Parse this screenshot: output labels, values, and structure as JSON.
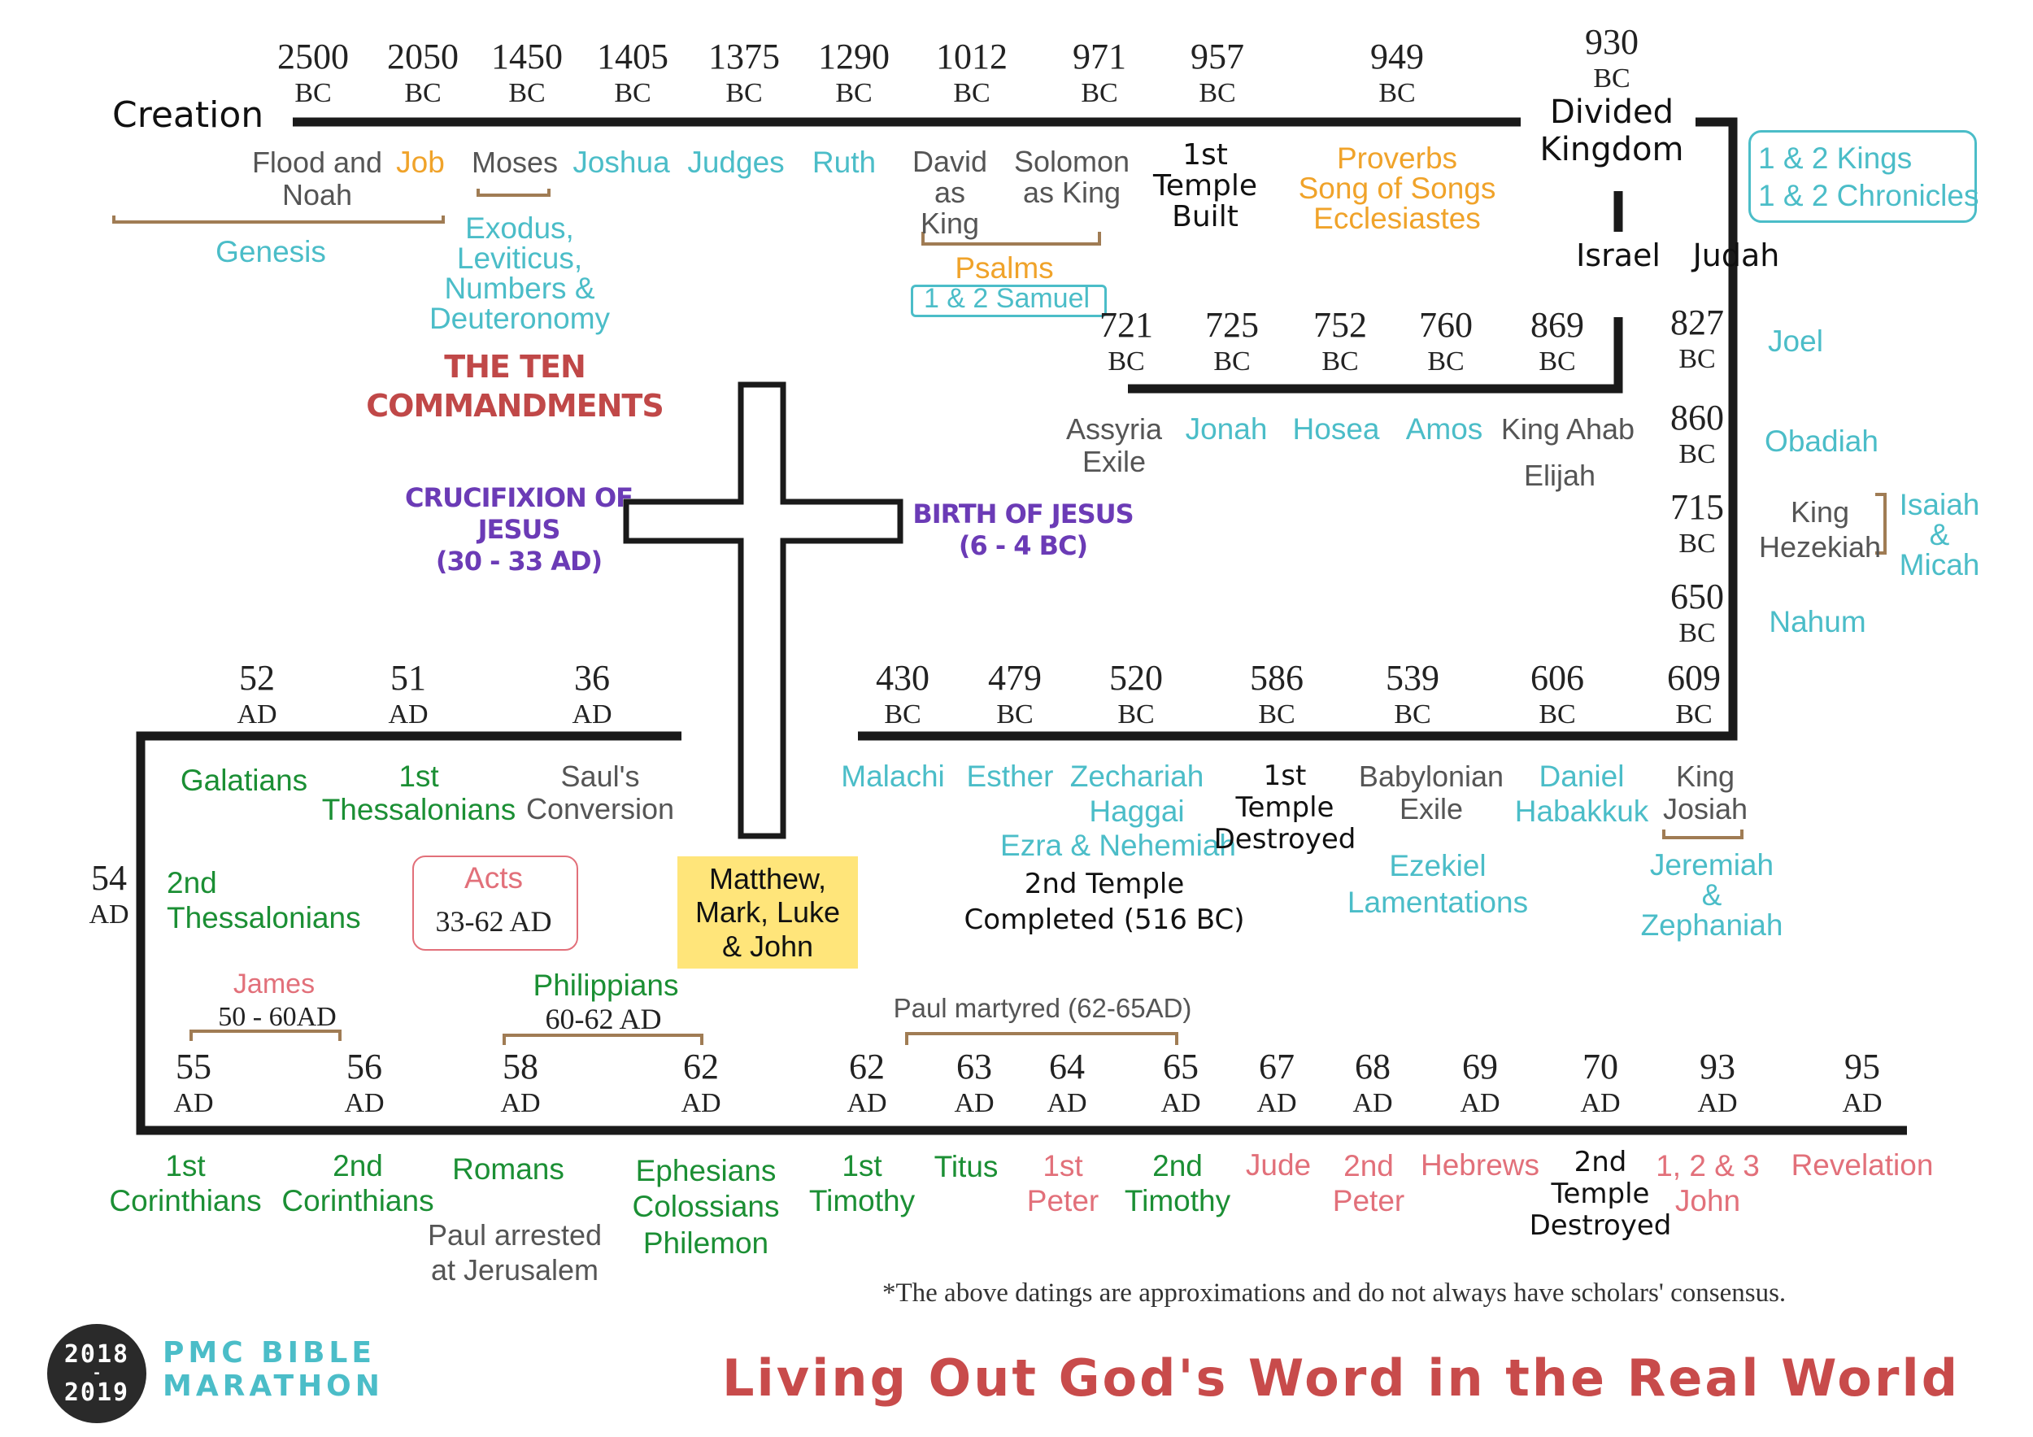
{
  "colors": {
    "timeline": "#1a1a1a",
    "teal": "#4bbdc8",
    "orange": "#f0a32a",
    "green": "#1b8f34",
    "pink": "#e2707a",
    "purple": "#6b3bb6",
    "red": "#c04848",
    "gray": "#555555",
    "bracket": "#a07c54",
    "gospels_bg": "#ffe57a"
  },
  "row1": {
    "start": "Creation",
    "dates": [
      {
        "year": "2500",
        "era": "BC"
      },
      {
        "year": "2050",
        "era": "BC"
      },
      {
        "year": "1450",
        "era": "BC"
      },
      {
        "year": "1405",
        "era": "BC"
      },
      {
        "year": "1375",
        "era": "BC"
      },
      {
        "year": "1290",
        "era": "BC"
      },
      {
        "year": "1012",
        "era": "BC"
      },
      {
        "year": "971",
        "era": "BC"
      },
      {
        "year": "957",
        "era": "BC"
      },
      {
        "year": "949",
        "era": "BC"
      },
      {
        "year": "930",
        "era": "BC"
      }
    ],
    "divided_kingdom": "Divided Kingdom",
    "flood": "Flood and Noah",
    "job": "Job",
    "moses": "Moses",
    "joshua": "Joshua",
    "judges": "Judges",
    "ruth": "Ruth",
    "david": "David as King",
    "solomon": "Solomon as King",
    "first_temple_built": "1st Temple Built",
    "wisdom": [
      "Proverbs",
      "Song of Songs",
      "Ecclesiastes"
    ],
    "genesis": "Genesis",
    "torah": [
      "Exodus,",
      "Leviticus,",
      "Numbers &",
      "Deuteronomy"
    ],
    "ten_commandments": [
      "THE TEN",
      "COMMANDMENTS"
    ],
    "psalms": "Psalms",
    "samuel": "1 & 2 Samuel",
    "kings_chronicles": [
      "1 & 2 Kings",
      "1 & 2 Chronicles"
    ]
  },
  "israel": {
    "label": "Israel",
    "dates": [
      {
        "year": "721",
        "era": "BC"
      },
      {
        "year": "725",
        "era": "BC"
      },
      {
        "year": "752",
        "era": "BC"
      },
      {
        "year": "760",
        "era": "BC"
      },
      {
        "year": "869",
        "era": "BC"
      }
    ],
    "assyria": "Assyria Exile",
    "jonah": "Jonah",
    "hosea": "Hosea",
    "amos": "Amos",
    "ahab": "King Ahab",
    "elijah": "Elijah"
  },
  "judah": {
    "label": "Judah",
    "dates": [
      {
        "year": "827",
        "era": "BC"
      },
      {
        "year": "860",
        "era": "BC"
      },
      {
        "year": "715",
        "era": "BC"
      },
      {
        "year": "650",
        "era": "BC"
      }
    ],
    "joel": "Joel",
    "obadiah": "Obadiah",
    "hezekiah": "King Hezekiah",
    "isaiah_micah": [
      "Isaiah",
      "&",
      "Micah"
    ],
    "nahum": "Nahum"
  },
  "cross": {
    "crucifixion": [
      "CRUCIFIXION OF",
      "JESUS",
      "(30 - 33 AD)"
    ],
    "birth": [
      "BIRTH OF JESUS",
      "(6 - 4 BC)"
    ]
  },
  "row3": {
    "dates_ad": [
      {
        "year": "52",
        "era": "AD"
      },
      {
        "year": "51",
        "era": "AD"
      },
      {
        "year": "36",
        "era": "AD"
      }
    ],
    "dates_bc": [
      {
        "year": "430",
        "era": "BC"
      },
      {
        "year": "479",
        "era": "BC"
      },
      {
        "year": "520",
        "era": "BC"
      },
      {
        "year": "586",
        "era": "BC"
      },
      {
        "year": "539",
        "era": "BC"
      },
      {
        "year": "606",
        "era": "BC"
      },
      {
        "year": "609",
        "era": "BC"
      }
    ],
    "galatians": "Galatians",
    "thess1": [
      "1st",
      "Thessalonians"
    ],
    "paul_conversion": [
      "Saul's",
      "Conversion"
    ],
    "thess2": [
      "2nd",
      "Thessalonians"
    ],
    "acts": "Acts",
    "acts_dates": "33-62 AD",
    "gospels": [
      "Matthew,",
      "Mark, Luke",
      "& John"
    ],
    "malachi": "Malachi",
    "esther": "Esther",
    "zechariah": "Zechariah",
    "haggai": "Haggai",
    "ezra": "Ezra & Nehemiah",
    "second_temple": [
      "2nd Temple",
      "Completed (516 BC)"
    ],
    "first_temple_destroyed": [
      "1st",
      "Temple",
      "Destroyed"
    ],
    "babylonian_exile": [
      "Babylonian",
      "Exile"
    ],
    "daniel": "Daniel",
    "habakkuk": "Habakkuk",
    "ezekiel": "Ezekiel",
    "lamentations": "Lamentations",
    "josiah": [
      "King",
      "Josiah"
    ],
    "jeremiah": [
      "Jeremiah",
      "&",
      "Zephaniah"
    ],
    "side_date": {
      "year": "54",
      "era": "AD"
    }
  },
  "row4": {
    "james": "James",
    "james_dates": "50 - 60AD",
    "philippians": "Philippians",
    "philippians_dates": "60-62 AD",
    "paul_martyred": "Paul martyred (62-65AD)",
    "dates": [
      {
        "year": "55",
        "era": "AD"
      },
      {
        "year": "56",
        "era": "AD"
      },
      {
        "year": "58",
        "era": "AD"
      },
      {
        "year": "62",
        "era": "AD"
      },
      {
        "year": "62",
        "era": "AD"
      },
      {
        "year": "63",
        "era": "AD"
      },
      {
        "year": "64",
        "era": "AD"
      },
      {
        "year": "65",
        "era": "AD"
      },
      {
        "year": "67",
        "era": "AD"
      },
      {
        "year": "68",
        "era": "AD"
      },
      {
        "year": "69",
        "era": "AD"
      },
      {
        "year": "70",
        "era": "AD"
      },
      {
        "year": "93",
        "era": "AD"
      },
      {
        "year": "95",
        "era": "AD"
      }
    ],
    "cor1": [
      "1st",
      "Corinthians"
    ],
    "cor2": [
      "2nd",
      "Corinthians"
    ],
    "romans": "Romans",
    "paul_arrested": [
      "Paul arrested",
      "at Jerusalem"
    ],
    "prison": [
      "Ephesians",
      "Colossians",
      "Philemon"
    ],
    "tim1": [
      "1st",
      "Timothy"
    ],
    "titus": "Titus",
    "peter1": [
      "1st",
      "Peter"
    ],
    "tim2": [
      "2nd",
      "Timothy"
    ],
    "jude": "Jude",
    "peter2": [
      "2nd",
      "Peter"
    ],
    "hebrews": "Hebrews",
    "temple_destroyed": [
      "2nd",
      "Temple",
      "Destroyed"
    ],
    "john": [
      "1, 2 & 3",
      "John"
    ],
    "revelation": "Revelation"
  },
  "footer": {
    "note": "*The above datings are approximations and do not always have scholars' consensus.",
    "badge_top": "2018",
    "badge_dash": "-",
    "badge_bottom": "2019",
    "brand": [
      "PMC BIBLE",
      "MARATHON"
    ],
    "tagline": "Living Out God's Word in the Real World"
  }
}
